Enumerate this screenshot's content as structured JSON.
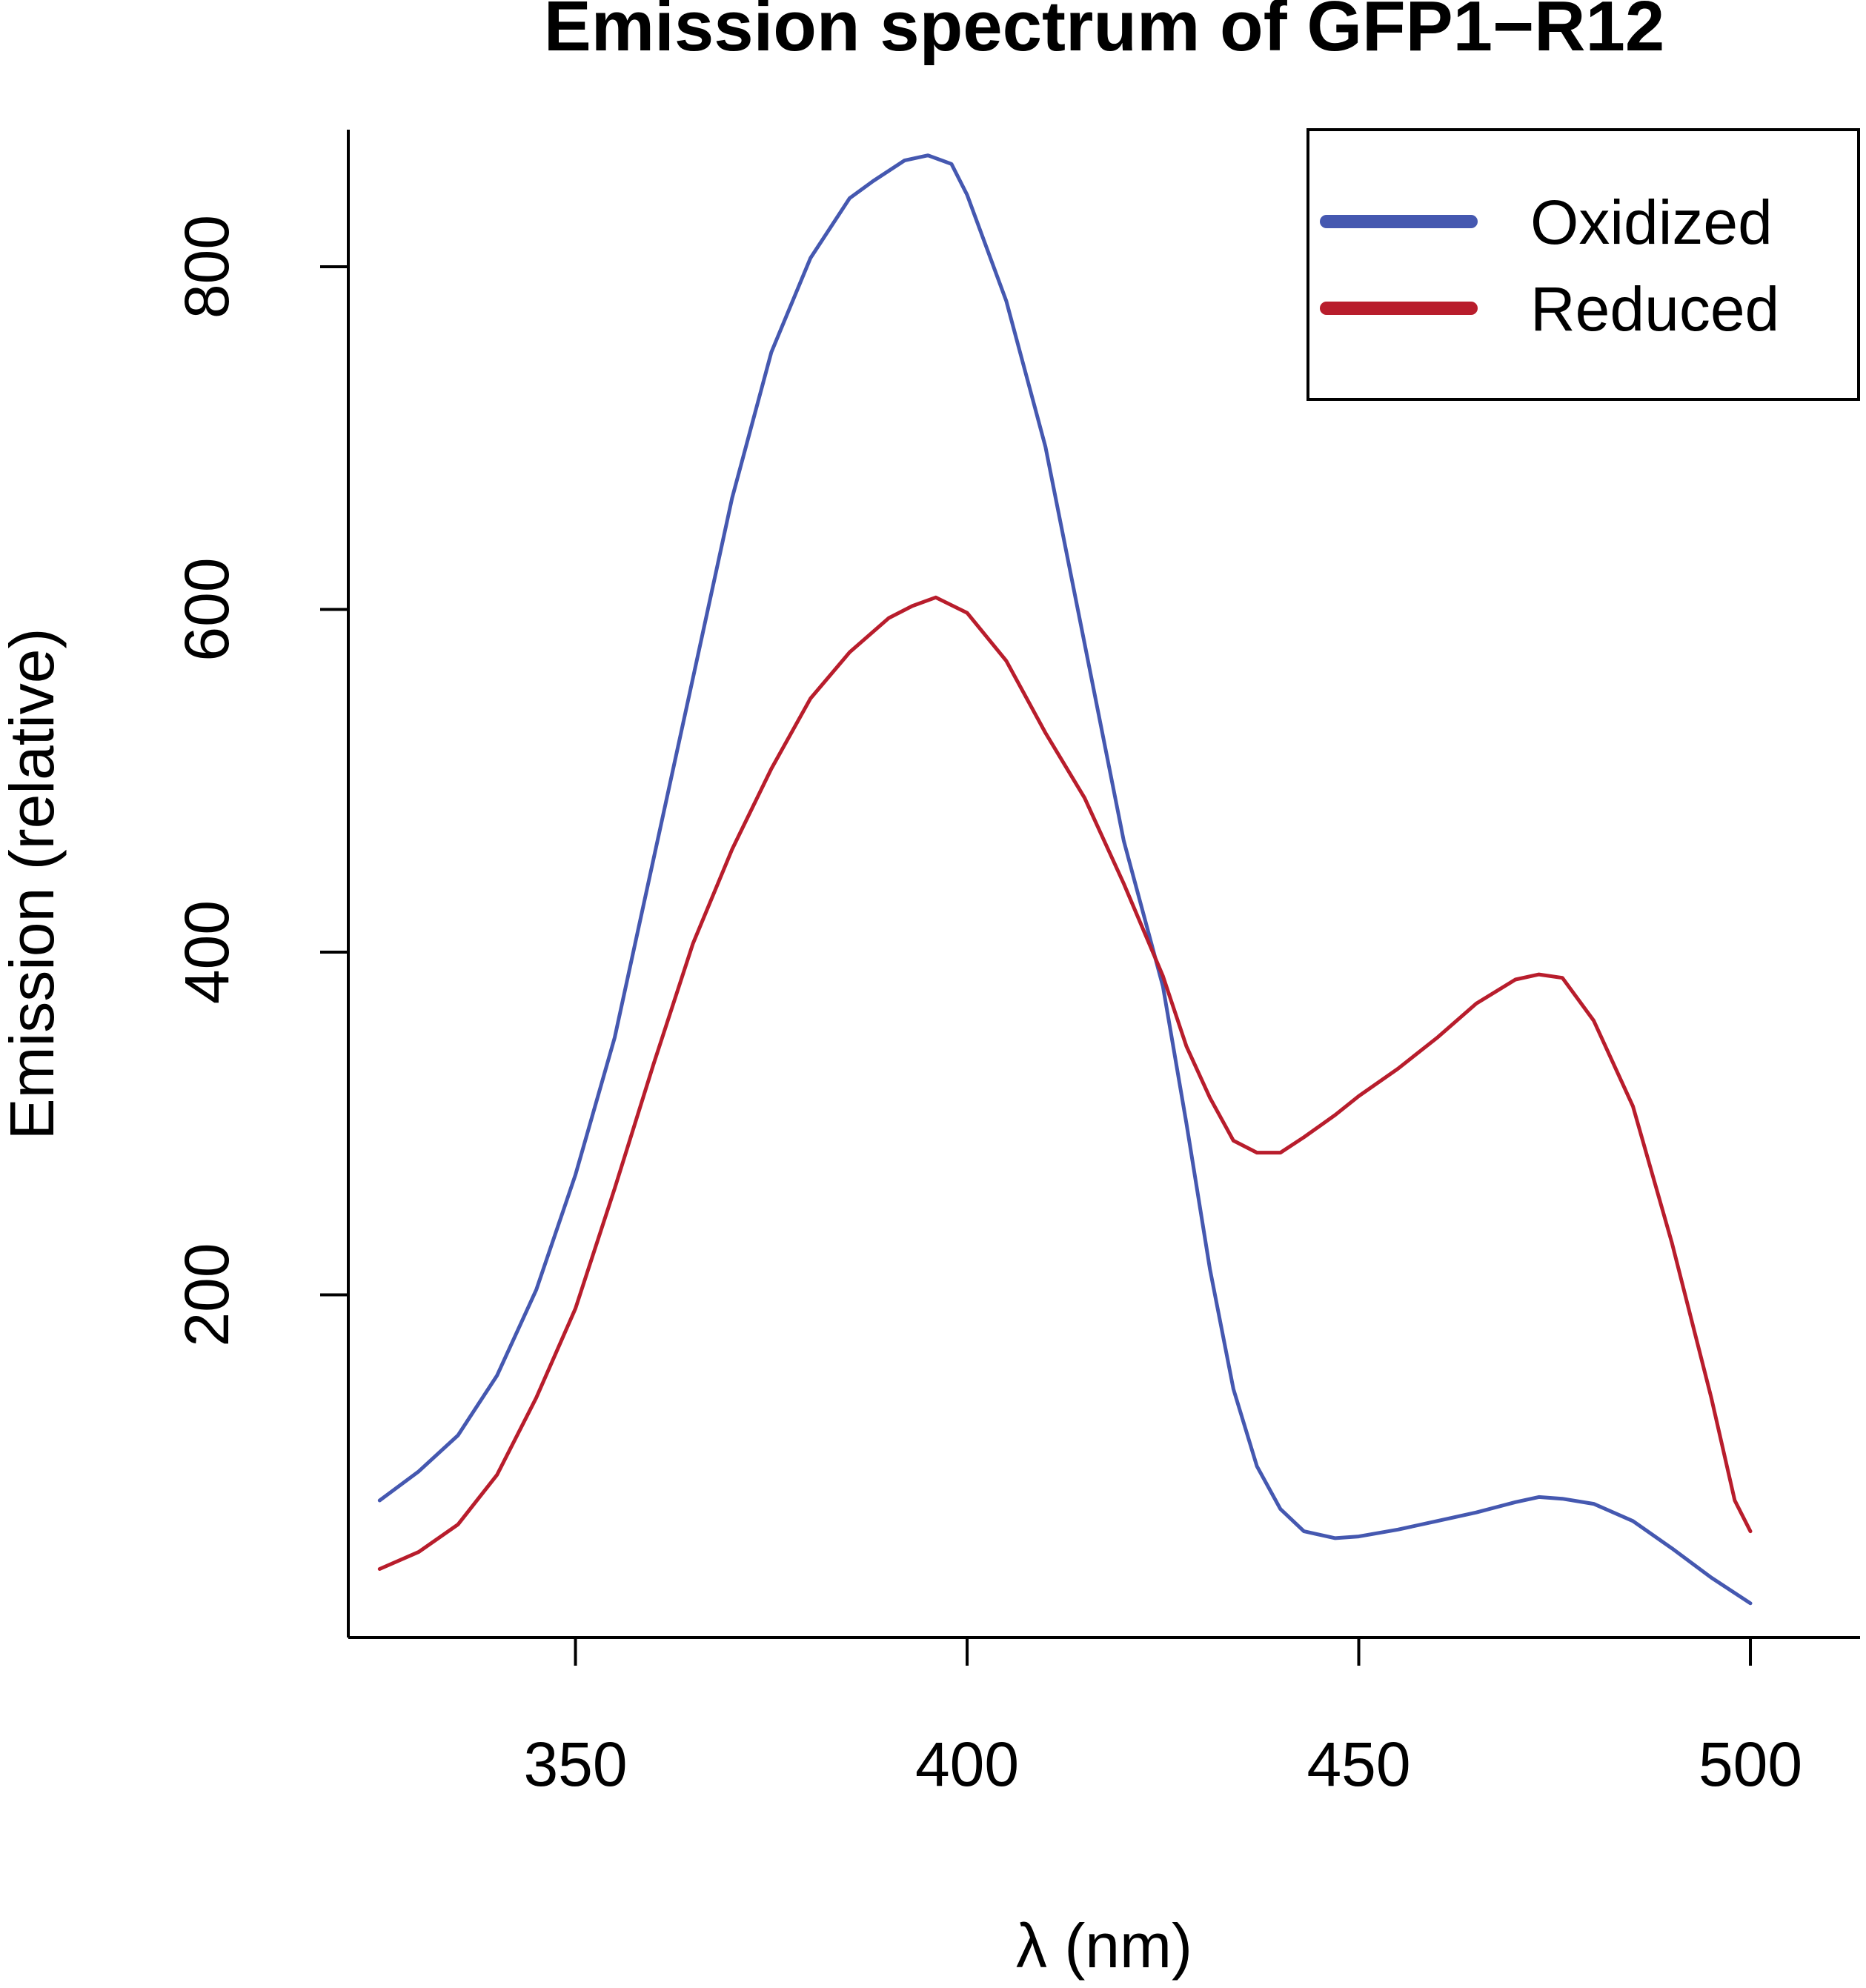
{
  "chart_data": {
    "type": "line",
    "title": "Emission spectrum of GFP1−R12",
    "xlabel": "λ (nm)",
    "ylabel": "Emission (relative)",
    "xlim": [
      321,
      514
    ],
    "ylim": [
      0,
      880
    ],
    "xticks": [
      350,
      400,
      450,
      500
    ],
    "yticks": [
      200,
      400,
      600,
      800
    ],
    "grid": false,
    "legend": {
      "position": "top-right"
    },
    "series": [
      {
        "name": "Oxidized",
        "color": "#4558b0",
        "x": [
          325,
          330,
          335,
          340,
          345,
          350,
          355,
          360,
          365,
          370,
          375,
          380,
          385,
          388,
          392,
          395,
          398,
          400,
          405,
          410,
          415,
          420,
          425,
          428,
          431,
          434,
          437,
          440,
          443,
          447,
          450,
          455,
          460,
          465,
          470,
          473,
          476,
          480,
          485,
          490,
          495,
          500
        ],
        "y": [
          80,
          97,
          118,
          153,
          203,
          270,
          350,
          455,
          560,
          665,
          750,
          805,
          840,
          850,
          862,
          865,
          860,
          842,
          780,
          695,
          580,
          465,
          380,
          300,
          215,
          145,
          100,
          75,
          62,
          58,
          59,
          63,
          68,
          73,
          79,
          82,
          81,
          78,
          68,
          52,
          35,
          20
        ]
      },
      {
        "name": "Reduced",
        "color": "#b81d2c",
        "x": [
          325,
          330,
          335,
          340,
          345,
          350,
          355,
          360,
          365,
          370,
          375,
          380,
          385,
          390,
          393,
          396,
          400,
          405,
          410,
          415,
          420,
          425,
          428,
          431,
          434,
          437,
          440,
          443,
          447,
          450,
          455,
          460,
          465,
          470,
          473,
          476,
          480,
          485,
          490,
          495,
          498,
          500
        ],
        "y": [
          40,
          50,
          66,
          95,
          140,
          192,
          262,
          335,
          405,
          460,
          507,
          548,
          575,
          595,
          602,
          607,
          598,
          570,
          528,
          490,
          440,
          386,
          345,
          315,
          290,
          283,
          283,
          292,
          305,
          316,
          332,
          350,
          370,
          384,
          387,
          385,
          360,
          310,
          230,
          140,
          80,
          62
        ]
      }
    ]
  }
}
